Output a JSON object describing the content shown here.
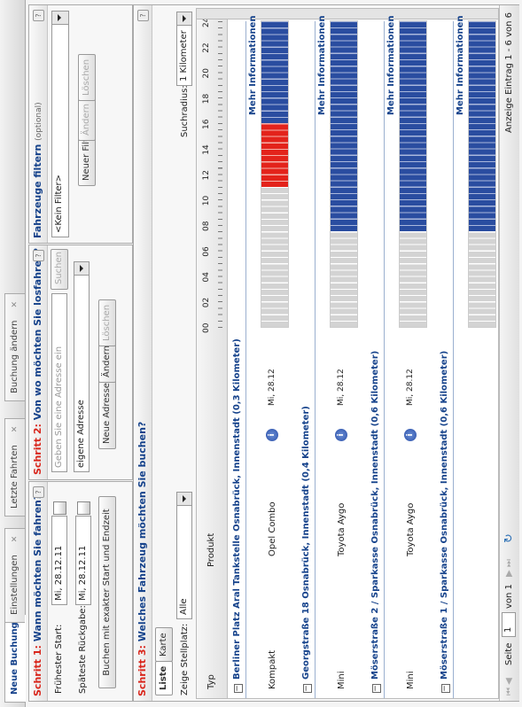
{
  "tabs": [
    "Neue Buchung",
    "Einstellungen",
    "Letzte Fahrten",
    "Buchung ändern"
  ],
  "step1": {
    "label": "Schritt 1:",
    "title": "Wann möchten Sie fahren?",
    "start_label": "Frühester Start:",
    "start_value": "Mi, 28.12.11",
    "return_label": "Späteste Rückgabe:",
    "return_value": "Mi, 28.12.11",
    "button": "Buchen mit exakter Start und Endzeit"
  },
  "step2": {
    "label": "Schritt 2:",
    "title": "Von wo möchten Sie losfahren?",
    "placeholder": "Geben Sie eine Adresse ein",
    "search": "Suchen",
    "address": "eigene Adresse",
    "buttons": [
      "Neue Adresse",
      "Ändern",
      "Löschen"
    ]
  },
  "filter": {
    "title": "Fahrzeuge filtern",
    "optional": "(optional)",
    "item": "<Kein Filter>",
    "buttons": [
      "Neuer Filter",
      "Ändern",
      "Löschen"
    ]
  },
  "step3": {
    "label": "Schritt 3:",
    "title": "Welches Fahrzeug möchten Sie buchen?",
    "tabs": [
      "Liste",
      "Karte"
    ],
    "station_label": "Zeige Stellplatz:",
    "station_value": "Alle",
    "radius_label": "Suchradius:",
    "radius_value": "1 Kilometer",
    "columns": [
      "Typ",
      "Produkt"
    ],
    "hours": [
      "00",
      "02",
      "04",
      "06",
      "08",
      "10",
      "12",
      "14",
      "16",
      "18",
      "20",
      "22",
      "24"
    ],
    "more": "Mehr Informationen",
    "groups": [
      {
        "title": "Berliner Platz Aral Tankstelle Osnabrück, Innenstadt (0,3 Kilometer)",
        "rows": [
          {
            "type": "Kompakt",
            "product": "Opel Combo",
            "date": "Mi, 28.12"
          }
        ]
      },
      {
        "title": "Georgstraße 18 Osnabrück, Innenstadt (0,4 Kilometer)",
        "rows": [
          {
            "type": "Mini",
            "product": "Toyota Aygo",
            "date": "Mi, 28.12"
          }
        ]
      },
      {
        "title": "Möserstraße 2 / Sparkasse Osnabrück, Innenstadt (0,6 Kilometer)",
        "rows": [
          {
            "type": "Mini",
            "product": "Toyota Aygo",
            "date": "Mi, 28.12"
          }
        ]
      },
      {
        "title": "Möserstraße 1 / Sparkasse Osnabrück, Innenstadt (0,6 Kilometer)",
        "rows": []
      }
    ]
  },
  "pager": {
    "page_label": "Seite",
    "page": "1",
    "of": "von 1",
    "summary": "Anzeige Eintrag 1 - 6 von 6"
  }
}
